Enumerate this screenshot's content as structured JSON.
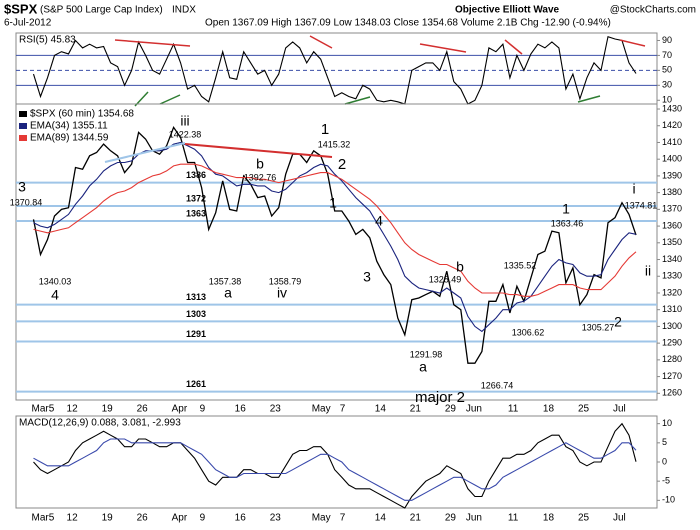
{
  "header": {
    "symbol": "$SPX",
    "name": "(S&P 500 Large Cap Index)",
    "exchange": "INDX",
    "date": "6-Jul-2012",
    "quote": "Open 1367.09  High 1367.09  Low 1348.03  Close 1354.68  Volume 2.1B  Chg -12.90 (-0.94%)",
    "author": "Objective Elliott Wave",
    "source": "@StockCharts.com"
  },
  "chart_data": [
    {
      "type": "line",
      "title": "RSI(5) 45.83",
      "ylim": [
        5,
        100
      ],
      "yticks": [
        90,
        70,
        50,
        30,
        10
      ],
      "levels": [
        70,
        50,
        30
      ],
      "level_color": "#3b4fa8",
      "series": [
        {
          "color": "#000000",
          "values": [
            45,
            15,
            40,
            70,
            75,
            72,
            90,
            80,
            85,
            80,
            82,
            60,
            55,
            30,
            50,
            88,
            70,
            50,
            45,
            65,
            85,
            60,
            25,
            30,
            15,
            8,
            40,
            75,
            40,
            38,
            75,
            60,
            45,
            50,
            30,
            45,
            80,
            88,
            80,
            60,
            75,
            65,
            40,
            15,
            20,
            15,
            12,
            30,
            25,
            10,
            8,
            10,
            8,
            5,
            50,
            55,
            60,
            60,
            50,
            75,
            35,
            25,
            5,
            10,
            30,
            80,
            75,
            85,
            40,
            70,
            50,
            72,
            85,
            80,
            88,
            80,
            25,
            45,
            12,
            40,
            60,
            50,
            95,
            92,
            90,
            60,
            45.83
          ]
        }
      ]
    },
    {
      "type": "line",
      "ylim": [
        1256,
        1433
      ],
      "yticks": [
        1260,
        1270,
        1280,
        1290,
        1300,
        1310,
        1320,
        1330,
        1340,
        1350,
        1360,
        1370,
        1380,
        1390,
        1400,
        1410,
        1420,
        1430
      ],
      "levels": [
        1386,
        1372,
        1363,
        1313,
        1303,
        1291,
        1261
      ],
      "level_color": "#9fc5e8",
      "categories": [
        "Mar5",
        null,
        null,
        null,
        null,
        "12",
        null,
        null,
        null,
        null,
        "19",
        null,
        null,
        null,
        null,
        "26",
        null,
        null,
        null,
        null,
        "Apr",
        null,
        null,
        null,
        "9",
        null,
        null,
        null,
        null,
        "16",
        null,
        null,
        null,
        null,
        "23",
        null,
        null,
        null,
        null,
        null,
        "May",
        null,
        null,
        null,
        "7",
        null,
        null,
        null,
        null,
        "14",
        null,
        null,
        null,
        null,
        "21",
        null,
        null,
        null,
        null,
        "29",
        null,
        null,
        "Jun",
        null,
        null,
        null,
        null,
        null,
        "11",
        null,
        null,
        null,
        null,
        "18",
        null,
        null,
        null,
        null,
        "25",
        null,
        null,
        null,
        null,
        "Jul",
        null,
        null,
        null
      ],
      "series": [
        {
          "name": "$SPX (60 min) 1354.68",
          "color": "#000000",
          "values": [
            1364,
            1343,
            1352,
            1366,
            1370,
            1371,
            1395,
            1394,
            1402,
            1404,
            1409,
            1405,
            1402,
            1392,
            1397,
            1416,
            1412,
            1405,
            1403,
            1408,
            1419,
            1413,
            1398,
            1398,
            1383,
            1358,
            1368,
            1387,
            1370,
            1369,
            1390,
            1385,
            1377,
            1378,
            1366,
            1371,
            1391,
            1403,
            1403,
            1398,
            1405,
            1402,
            1391,
            1369,
            1369,
            1363,
            1355,
            1358,
            1353,
            1339,
            1331,
            1325,
            1305,
            1295,
            1316,
            1317,
            1319,
            1321,
            1318,
            1333,
            1313,
            1310,
            1278,
            1278,
            1285,
            1315,
            1315,
            1325,
            1308,
            1324,
            1315,
            1329,
            1343,
            1345,
            1357,
            1356,
            1326,
            1335,
            1313,
            1319,
            1331,
            1329,
            1362,
            1365,
            1374,
            1367,
            1354.68
          ]
        },
        {
          "name": "EMA(34) 1355.11",
          "color": "#1a237e",
          "values": [
            1362,
            1360,
            1359,
            1361,
            1364,
            1367,
            1373,
            1378,
            1384,
            1388,
            1393,
            1396,
            1398,
            1398,
            1399,
            1403,
            1405,
            1405,
            1405,
            1406,
            1409,
            1410,
            1408,
            1406,
            1402,
            1395,
            1391,
            1390,
            1387,
            1384,
            1385,
            1385,
            1384,
            1384,
            1381,
            1380,
            1382,
            1386,
            1390,
            1392,
            1395,
            1397,
            1396,
            1391,
            1387,
            1382,
            1377,
            1373,
            1369,
            1362,
            1355,
            1348,
            1340,
            1330,
            1326,
            1323,
            1322,
            1321,
            1320,
            1323,
            1320,
            1317,
            1306,
            1300,
            1297,
            1301,
            1305,
            1310,
            1310,
            1314,
            1315,
            1318,
            1324,
            1330,
            1336,
            1340,
            1338,
            1337,
            1332,
            1330,
            1330,
            1331,
            1340,
            1346,
            1352,
            1356,
            1355.11
          ]
        },
        {
          "name": "EMA(89) 1344.59",
          "color": "#e53935",
          "values": [
            1358,
            1357,
            1356,
            1357,
            1358,
            1359,
            1362,
            1365,
            1368,
            1371,
            1375,
            1378,
            1380,
            1381,
            1383,
            1386,
            1388,
            1390,
            1391,
            1393,
            1396,
            1397,
            1397,
            1397,
            1396,
            1394,
            1392,
            1391,
            1390,
            1389,
            1389,
            1389,
            1388,
            1388,
            1387,
            1386,
            1387,
            1388,
            1389,
            1390,
            1391,
            1392,
            1392,
            1390,
            1388,
            1385,
            1382,
            1379,
            1376,
            1372,
            1367,
            1362,
            1356,
            1350,
            1346,
            1343,
            1341,
            1339,
            1337,
            1337,
            1335,
            1333,
            1327,
            1323,
            1320,
            1320,
            1320,
            1320,
            1319,
            1319,
            1318,
            1318,
            1319,
            1321,
            1323,
            1325,
            1325,
            1325,
            1323,
            1322,
            1322,
            1322,
            1326,
            1330,
            1336,
            1341,
            1344.59
          ]
        }
      ],
      "annotations": [
        {
          "text": "iii",
          "color": "#6a1b6a"
        },
        {
          "text": "1422.38",
          "color": "#000000"
        },
        {
          "text": "1",
          "color": "#000000"
        },
        {
          "text": "1415.32",
          "color": "#000000"
        },
        {
          "text": "2",
          "color": "#2b3a8f"
        },
        {
          "text": "b",
          "color": "#2b3a8f"
        },
        {
          "text": "1392.76",
          "color": "#000000"
        },
        {
          "text": "3",
          "color": "#2b3a8f"
        },
        {
          "text": "1370.84",
          "color": "#000000"
        },
        {
          "text": "4",
          "color": "#2b3a8f"
        },
        {
          "text": "1340.03",
          "color": "#000000"
        },
        {
          "text": "a",
          "color": "#2b3a8f"
        },
        {
          "text": "1357.38",
          "color": "#000000"
        },
        {
          "text": "iv",
          "color": "#6a1b6a"
        },
        {
          "text": "1358.79",
          "color": "#000000"
        },
        {
          "text": "1",
          "color": "#2b3a8f"
        },
        {
          "text": "4",
          "color": "#2b3a8f"
        },
        {
          "text": "3",
          "color": "#2b3a8f"
        },
        {
          "text": "b",
          "color": "#6a1b6a"
        },
        {
          "text": "1328.49",
          "color": "#000000"
        },
        {
          "text": "a",
          "color": "#6a1b6a"
        },
        {
          "text": "1291.98",
          "color": "#000000"
        },
        {
          "text": "major 2",
          "color": "#000000"
        },
        {
          "text": "1266.74",
          "color": "#000000"
        },
        {
          "text": "1335.52",
          "color": "#000000"
        },
        {
          "text": "1306.62",
          "color": "#000000"
        },
        {
          "text": "1",
          "color": "#2b3a8f"
        },
        {
          "text": "1363.46",
          "color": "#000000"
        },
        {
          "text": "1305.27",
          "color": "#000000"
        },
        {
          "text": "2",
          "color": "#2b3a8f"
        },
        {
          "text": "i",
          "color": "#2e7d32"
        },
        {
          "text": "1374.81",
          "color": "#000000"
        },
        {
          "text": "ii",
          "color": "#2e7d32"
        }
      ]
    },
    {
      "type": "line",
      "title": "MACD(12,26,9) 0.088, 3.081, -2.993",
      "ylim": [
        -12,
        12
      ],
      "yticks": [
        10,
        5,
        0,
        -5,
        -10
      ],
      "categories": [
        "Mar5",
        null,
        null,
        null,
        null,
        "12",
        null,
        null,
        null,
        null,
        "19",
        null,
        null,
        null,
        null,
        "26",
        null,
        null,
        null,
        null,
        "Apr",
        null,
        null,
        null,
        "9",
        null,
        null,
        null,
        null,
        "16",
        null,
        null,
        null,
        null,
        "23",
        null,
        null,
        null,
        null,
        null,
        "May",
        null,
        null,
        null,
        "7",
        null,
        null,
        null,
        null,
        "14",
        null,
        null,
        null,
        null,
        "21",
        null,
        null,
        null,
        null,
        "29",
        null,
        null,
        "Jun",
        null,
        null,
        null,
        null,
        null,
        "11",
        null,
        null,
        null,
        null,
        "18",
        null,
        null,
        null,
        null,
        "25",
        null,
        null,
        null,
        null,
        "Jul",
        null,
        null,
        null
      ],
      "series": [
        {
          "color": "#000000",
          "values": [
            0,
            -2,
            -3,
            -2,
            -1,
            0,
            3,
            5,
            6,
            7,
            8,
            7,
            6,
            4,
            4,
            6,
            6,
            5,
            4,
            4,
            5,
            5,
            3,
            1,
            -2,
            -5,
            -6,
            -4,
            -4,
            -4,
            -2,
            -2,
            -3,
            -3,
            -4,
            -4,
            -1,
            2,
            3,
            3,
            4,
            4,
            2,
            -2,
            -4,
            -6,
            -7,
            -7,
            -7,
            -8,
            -9,
            -10,
            -11,
            -12,
            -9,
            -7,
            -5,
            -4,
            -3,
            -1,
            -2,
            -3,
            -7,
            -9,
            -9,
            -5,
            -2,
            1,
            1,
            2,
            2,
            3,
            5,
            6,
            7,
            7,
            4,
            3,
            0,
            -1,
            0,
            0,
            4,
            8,
            10,
            7,
            0.088
          ]
        },
        {
          "color": "#3949ab",
          "values": [
            1,
            0,
            -1,
            -1,
            -1,
            -1,
            0,
            1,
            2,
            3,
            5,
            6,
            6,
            6,
            5,
            5,
            5,
            5,
            5,
            5,
            5,
            5,
            4,
            3,
            2,
            0,
            -2,
            -3,
            -4,
            -4,
            -3,
            -3,
            -3,
            -3,
            -3,
            -3,
            -3,
            -2,
            -1,
            0,
            1,
            2,
            2,
            1,
            0,
            -2,
            -3,
            -4,
            -5,
            -6,
            -7,
            -8,
            -9,
            -10,
            -10,
            -9,
            -8,
            -7,
            -6,
            -5,
            -4,
            -4,
            -5,
            -6,
            -7,
            -7,
            -6,
            -4,
            -3,
            -2,
            -1,
            0,
            1,
            2,
            3,
            4,
            5,
            4,
            3,
            2,
            1,
            1,
            2,
            3,
            5,
            5,
            3.081
          ]
        }
      ]
    }
  ]
}
